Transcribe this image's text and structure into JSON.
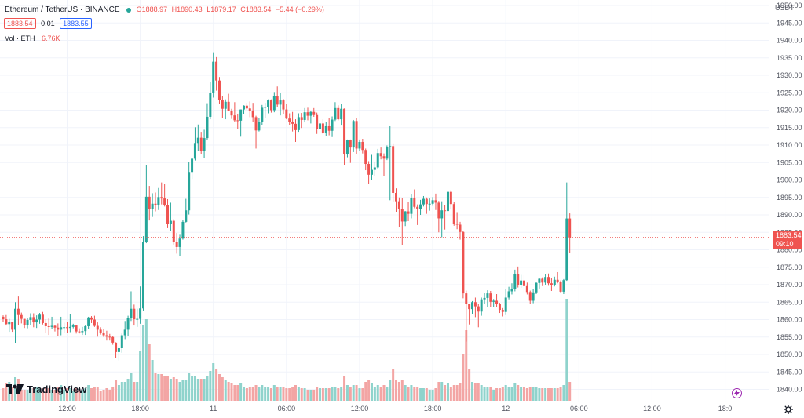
{
  "header": {
    "symbol": "Ethereum / TetherUS · BINANCE",
    "open_label": "O",
    "open": "1888.97",
    "high_label": "H",
    "high": "1890.43",
    "low_label": "L",
    "low": "1879.17",
    "close_label": "C",
    "close": "1883.54",
    "change": "−5.44 (−0.29%)",
    "bid": "1883.54",
    "spread": "0.01",
    "ask": "1883.55",
    "vol_label": "Vol · ETH",
    "vol_value": "6.76K"
  },
  "price_axis": {
    "currency": "USDT",
    "last_price": "1883.54",
    "countdown": "09:10"
  },
  "branding": {
    "name": "TradingView"
  },
  "colors": {
    "up": "#26a69a",
    "down": "#ef5350",
    "vol_up": "#8fd3cc",
    "vol_down": "#f3a5a4",
    "grid": "#f0f3fa"
  },
  "chart_data": {
    "type": "candlestick",
    "symbol": "ETH/USDT",
    "exchange": "BINANCE",
    "ylim": [
      1836,
      1953
    ],
    "yticks": [
      1840,
      1845,
      1850,
      1855,
      1860,
      1865,
      1870,
      1875,
      1880,
      1885,
      1890,
      1895,
      1900,
      1905,
      1910,
      1915,
      1920,
      1925,
      1930,
      1935,
      1940,
      1945,
      1950
    ],
    "time_ticks": [
      {
        "label": "12:00",
        "bar": 21
      },
      {
        "label": "18:00",
        "bar": 45
      },
      {
        "label": "11",
        "bar": 69
      },
      {
        "label": "06:00",
        "bar": 93
      },
      {
        "label": "12:00",
        "bar": 117
      },
      {
        "label": "18:00",
        "bar": 141
      },
      {
        "label": "12",
        "bar": 165
      },
      {
        "label": "06:00",
        "bar": 189
      },
      {
        "label": "12:00",
        "bar": 213
      },
      {
        "label": "18:0",
        "bar": 237
      }
    ],
    "last_price": 1883.54,
    "candles": [
      [
        1860.8,
        1861.2,
        1859.4,
        1860.1,
        0.08
      ],
      [
        1860.1,
        1861.3,
        1858.3,
        1858.7,
        0.11
      ],
      [
        1858.7,
        1860.2,
        1856.5,
        1859.3,
        0.12
      ],
      [
        1859.3,
        1859.4,
        1856.5,
        1857.1,
        0.09
      ],
      [
        1857.1,
        1865.0,
        1853.2,
        1863.1,
        0.15
      ],
      [
        1863.1,
        1866.6,
        1858.4,
        1861.3,
        0.14
      ],
      [
        1861.3,
        1862.0,
        1858.9,
        1860.2,
        0.07
      ],
      [
        1860.2,
        1860.2,
        1857.6,
        1858.4,
        0.07
      ],
      [
        1858.4,
        1860.4,
        1857.5,
        1859.9,
        0.07
      ],
      [
        1859.9,
        1861.8,
        1858.4,
        1860.7,
        0.08
      ],
      [
        1860.7,
        1861.8,
        1857.8,
        1859.2,
        0.08
      ],
      [
        1859.2,
        1861.2,
        1857.6,
        1860.0,
        0.09
      ],
      [
        1860.0,
        1861.9,
        1858.8,
        1861.4,
        0.08
      ],
      [
        1861.4,
        1862.2,
        1858.6,
        1859.0,
        0.08
      ],
      [
        1859.0,
        1860.1,
        1856.3,
        1858.1,
        0.09
      ],
      [
        1858.1,
        1860.3,
        1855.6,
        1857.9,
        0.08
      ],
      [
        1857.9,
        1860.8,
        1857.4,
        1858.2,
        0.07
      ],
      [
        1858.2,
        1858.5,
        1856.6,
        1857.7,
        0.07
      ],
      [
        1857.7,
        1858.9,
        1855.2,
        1857.1,
        0.09
      ],
      [
        1857.1,
        1860.8,
        1855.5,
        1857.8,
        0.1
      ],
      [
        1857.8,
        1859.1,
        1856.2,
        1857.8,
        0.07
      ],
      [
        1857.8,
        1859.3,
        1856.1,
        1857.6,
        0.08
      ],
      [
        1857.6,
        1861.6,
        1856.4,
        1857.9,
        0.08
      ],
      [
        1857.9,
        1858.8,
        1857.5,
        1858.3,
        0.06
      ],
      [
        1858.3,
        1858.4,
        1856.0,
        1856.6,
        0.08
      ],
      [
        1856.6,
        1857.5,
        1856.0,
        1856.4,
        0.07
      ],
      [
        1856.4,
        1857.9,
        1855.6,
        1856.7,
        0.07
      ],
      [
        1856.7,
        1858.4,
        1855.6,
        1858.1,
        0.08
      ],
      [
        1858.1,
        1860.8,
        1857.2,
        1860.6,
        0.1
      ],
      [
        1860.6,
        1861.0,
        1859.0,
        1860.0,
        0.08
      ],
      [
        1860.0,
        1861.1,
        1857.9,
        1858.2,
        0.09
      ],
      [
        1858.2,
        1859.2,
        1855.1,
        1857.1,
        0.09
      ],
      [
        1857.1,
        1857.8,
        1855.7,
        1856.3,
        0.06
      ],
      [
        1856.3,
        1857.2,
        1855.0,
        1855.5,
        0.07
      ],
      [
        1855.5,
        1856.8,
        1854.0,
        1855.1,
        0.08
      ],
      [
        1855.1,
        1855.9,
        1854.0,
        1855.0,
        0.07
      ],
      [
        1855.0,
        1855.2,
        1852.8,
        1853.4,
        0.09
      ],
      [
        1853.4,
        1853.5,
        1849.1,
        1850.7,
        0.13
      ],
      [
        1850.7,
        1852.4,
        1848.3,
        1851.8,
        0.1
      ],
      [
        1851.8,
        1856.0,
        1850.5,
        1855.5,
        0.12
      ],
      [
        1855.5,
        1859.6,
        1854.4,
        1857.1,
        0.12
      ],
      [
        1857.1,
        1861.1,
        1855.4,
        1860.5,
        0.14
      ],
      [
        1860.5,
        1868.1,
        1859.6,
        1863.1,
        0.18
      ],
      [
        1863.1,
        1864.3,
        1858.3,
        1860.1,
        0.12
      ],
      [
        1860.1,
        1863.1,
        1857.9,
        1860.2,
        0.12
      ],
      [
        1860.2,
        1869.5,
        1858.8,
        1863.2,
        0.32
      ],
      [
        1863.2,
        1883.9,
        1862.6,
        1882.2,
        0.48
      ],
      [
        1882.2,
        1904.2,
        1881.9,
        1895.2,
        0.52
      ],
      [
        1895.2,
        1898.3,
        1888.4,
        1891.8,
        0.36
      ],
      [
        1891.8,
        1896.2,
        1889.4,
        1893.2,
        0.26
      ],
      [
        1893.2,
        1896.4,
        1891.0,
        1892.7,
        0.18
      ],
      [
        1892.7,
        1897.7,
        1891.4,
        1895.1,
        0.17
      ],
      [
        1895.1,
        1899.3,
        1893.0,
        1894.7,
        0.17
      ],
      [
        1894.7,
        1898.8,
        1892.4,
        1892.8,
        0.16
      ],
      [
        1892.8,
        1894.5,
        1886.2,
        1887.4,
        0.16
      ],
      [
        1887.4,
        1893.5,
        1885.4,
        1888.3,
        0.14
      ],
      [
        1888.3,
        1888.8,
        1881.5,
        1882.3,
        0.15
      ],
      [
        1882.3,
        1884.8,
        1878.9,
        1880.8,
        0.14
      ],
      [
        1880.8,
        1884.3,
        1878.3,
        1883.2,
        0.12
      ],
      [
        1883.2,
        1888.6,
        1882.9,
        1888.0,
        0.13
      ],
      [
        1888.0,
        1894.6,
        1887.8,
        1891.3,
        0.13
      ],
      [
        1891.3,
        1905.2,
        1890.1,
        1902.3,
        0.18
      ],
      [
        1902.3,
        1906.3,
        1900.3,
        1906.1,
        0.16
      ],
      [
        1906.1,
        1915.1,
        1905.6,
        1910.6,
        0.16
      ],
      [
        1910.6,
        1915.9,
        1908.3,
        1912.1,
        0.14
      ],
      [
        1912.1,
        1913.8,
        1907.4,
        1908.3,
        0.14
      ],
      [
        1908.3,
        1914.4,
        1906.4,
        1912.0,
        0.14
      ],
      [
        1912.0,
        1922.0,
        1911.5,
        1918.1,
        0.16
      ],
      [
        1918.1,
        1928.1,
        1917.4,
        1925.0,
        0.19
      ],
      [
        1925.0,
        1936.6,
        1923.6,
        1933.9,
        0.24
      ],
      [
        1933.9,
        1935.2,
        1925.6,
        1928.5,
        0.2
      ],
      [
        1928.5,
        1929.5,
        1921.7,
        1922.9,
        0.17
      ],
      [
        1922.9,
        1924.0,
        1917.7,
        1920.4,
        0.15
      ],
      [
        1920.4,
        1923.1,
        1917.4,
        1922.4,
        0.13
      ],
      [
        1922.4,
        1924.7,
        1919.7,
        1919.8,
        0.12
      ],
      [
        1919.8,
        1920.4,
        1917.5,
        1918.5,
        0.11
      ],
      [
        1918.5,
        1922.3,
        1916.6,
        1917.1,
        0.1
      ],
      [
        1917.1,
        1919.0,
        1914.7,
        1917.0,
        0.1
      ],
      [
        1917.0,
        1920.2,
        1912.4,
        1920.2,
        0.11
      ],
      [
        1920.2,
        1921.4,
        1918.8,
        1921.3,
        0.09
      ],
      [
        1921.3,
        1922.1,
        1920.1,
        1920.5,
        0.08
      ],
      [
        1920.5,
        1922.5,
        1918.0,
        1919.9,
        0.09
      ],
      [
        1919.9,
        1922.1,
        1916.7,
        1918.0,
        0.09
      ],
      [
        1918.0,
        1918.4,
        1909.0,
        1914.2,
        0.1
      ],
      [
        1914.2,
        1917.8,
        1913.9,
        1916.6,
        0.09
      ],
      [
        1916.6,
        1921.5,
        1915.7,
        1920.7,
        0.1
      ],
      [
        1920.7,
        1922.1,
        1917.7,
        1921.0,
        0.09
      ],
      [
        1921.0,
        1923.1,
        1919.1,
        1922.8,
        0.09
      ],
      [
        1922.8,
        1923.1,
        1919.3,
        1920.0,
        0.08
      ],
      [
        1920.0,
        1925.2,
        1919.4,
        1924.0,
        0.1
      ],
      [
        1924.0,
        1926.8,
        1921.0,
        1921.6,
        0.09
      ],
      [
        1921.6,
        1925.0,
        1918.5,
        1922.8,
        0.09
      ],
      [
        1922.8,
        1923.2,
        1918.8,
        1920.2,
        0.09
      ],
      [
        1920.2,
        1921.8,
        1917.4,
        1917.6,
        0.08
      ],
      [
        1917.6,
        1919.1,
        1915.7,
        1916.7,
        0.08
      ],
      [
        1916.7,
        1919.5,
        1913.9,
        1916.1,
        0.09
      ],
      [
        1916.1,
        1917.4,
        1910.9,
        1914.3,
        0.1
      ],
      [
        1914.3,
        1919.1,
        1913.8,
        1918.0,
        0.09
      ],
      [
        1918.0,
        1919.2,
        1914.9,
        1917.2,
        0.08
      ],
      [
        1917.2,
        1920.6,
        1916.5,
        1919.4,
        0.08
      ],
      [
        1919.4,
        1920.7,
        1917.1,
        1918.4,
        0.07
      ],
      [
        1918.4,
        1919.8,
        1916.2,
        1919.5,
        0.07
      ],
      [
        1919.5,
        1920.6,
        1918.1,
        1918.6,
        0.07
      ],
      [
        1918.6,
        1919.3,
        1913.2,
        1914.6,
        0.09
      ],
      [
        1914.6,
        1916.6,
        1913.3,
        1916.2,
        0.08
      ],
      [
        1916.2,
        1917.4,
        1913.1,
        1913.6,
        0.08
      ],
      [
        1913.6,
        1916.7,
        1912.7,
        1915.4,
        0.08
      ],
      [
        1915.4,
        1917.7,
        1912.8,
        1914.1,
        0.08
      ],
      [
        1914.1,
        1918.2,
        1912.3,
        1917.3,
        0.09
      ],
      [
        1917.3,
        1922.3,
        1916.9,
        1920.6,
        0.09
      ],
      [
        1920.6,
        1921.4,
        1917.1,
        1917.4,
        0.08
      ],
      [
        1917.4,
        1921.8,
        1915.6,
        1920.4,
        0.09
      ],
      [
        1920.4,
        1920.5,
        1904.2,
        1907.3,
        0.16
      ],
      [
        1907.3,
        1911.6,
        1906.5,
        1911.4,
        0.1
      ],
      [
        1911.4,
        1911.6,
        1904.9,
        1909.3,
        0.09
      ],
      [
        1909.3,
        1917.2,
        1908.0,
        1916.9,
        0.1
      ],
      [
        1916.9,
        1917.8,
        1907.3,
        1909.0,
        0.1
      ],
      [
        1909.0,
        1911.6,
        1908.3,
        1910.9,
        0.08
      ],
      [
        1910.9,
        1911.8,
        1907.6,
        1908.6,
        0.08
      ],
      [
        1908.6,
        1909.0,
        1902.8,
        1904.6,
        0.12
      ],
      [
        1904.6,
        1905.4,
        1898.8,
        1901.5,
        0.13
      ],
      [
        1901.5,
        1907.2,
        1899.9,
        1902.9,
        0.11
      ],
      [
        1902.9,
        1905.3,
        1901.2,
        1903.6,
        0.09
      ],
      [
        1903.6,
        1908.9,
        1903.2,
        1907.7,
        0.1
      ],
      [
        1907.7,
        1909.3,
        1905.9,
        1906.8,
        0.09
      ],
      [
        1906.8,
        1907.6,
        1901.0,
        1906.1,
        0.1
      ],
      [
        1906.1,
        1909.9,
        1905.7,
        1909.4,
        0.09
      ],
      [
        1909.4,
        1915.4,
        1894.2,
        1909.7,
        0.13
      ],
      [
        1909.7,
        1910.5,
        1893.8,
        1896.3,
        0.2
      ],
      [
        1896.3,
        1897.6,
        1890.9,
        1893.9,
        0.13
      ],
      [
        1893.9,
        1895.0,
        1886.5,
        1891.6,
        0.12
      ],
      [
        1891.6,
        1894.9,
        1881.4,
        1888.1,
        0.13
      ],
      [
        1888.1,
        1891.1,
        1886.8,
        1891.0,
        0.1
      ],
      [
        1891.0,
        1893.6,
        1888.2,
        1890.3,
        0.09
      ],
      [
        1890.3,
        1895.9,
        1889.0,
        1894.8,
        0.1
      ],
      [
        1894.8,
        1897.3,
        1891.9,
        1892.3,
        0.09
      ],
      [
        1892.3,
        1893.0,
        1887.1,
        1891.6,
        0.09
      ],
      [
        1891.6,
        1894.3,
        1890.0,
        1893.0,
        0.08
      ],
      [
        1893.0,
        1895.4,
        1892.4,
        1894.6,
        0.08
      ],
      [
        1894.6,
        1895.0,
        1890.3,
        1893.1,
        0.08
      ],
      [
        1893.1,
        1894.7,
        1891.2,
        1893.2,
        0.07
      ],
      [
        1893.2,
        1895.1,
        1892.6,
        1894.2,
        0.07
      ],
      [
        1894.2,
        1896.1,
        1891.4,
        1893.5,
        0.08
      ],
      [
        1893.5,
        1894.0,
        1885.0,
        1889.0,
        0.12
      ],
      [
        1889.0,
        1893.9,
        1883.6,
        1891.3,
        0.12
      ],
      [
        1891.3,
        1892.8,
        1885.8,
        1891.1,
        0.1
      ],
      [
        1891.1,
        1897.0,
        1890.2,
        1896.6,
        0.11
      ],
      [
        1896.6,
        1897.1,
        1891.6,
        1893.1,
        0.09
      ],
      [
        1893.1,
        1893.8,
        1886.9,
        1887.5,
        0.1
      ],
      [
        1887.5,
        1890.8,
        1885.9,
        1887.2,
        0.1
      ],
      [
        1887.2,
        1888.0,
        1882.9,
        1885.1,
        0.11
      ],
      [
        1885.1,
        1885.3,
        1866.1,
        1867.5,
        0.3
      ],
      [
        1867.5,
        1868.3,
        1853.7,
        1864.5,
        0.45
      ],
      [
        1864.5,
        1864.6,
        1858.6,
        1863.0,
        0.2
      ],
      [
        1863.0,
        1865.3,
        1861.5,
        1865.0,
        0.12
      ],
      [
        1865.0,
        1866.3,
        1860.7,
        1863.8,
        0.11
      ],
      [
        1863.8,
        1864.6,
        1857.8,
        1862.3,
        0.11
      ],
      [
        1862.3,
        1866.3,
        1861.1,
        1865.8,
        0.1
      ],
      [
        1865.8,
        1867.7,
        1864.6,
        1866.2,
        0.09
      ],
      [
        1866.2,
        1868.4,
        1863.6,
        1867.5,
        0.09
      ],
      [
        1867.5,
        1868.2,
        1863.7,
        1865.1,
        0.09
      ],
      [
        1865.1,
        1865.9,
        1863.5,
        1865.4,
        0.07
      ],
      [
        1865.4,
        1867.3,
        1863.6,
        1864.5,
        0.08
      ],
      [
        1864.5,
        1864.8,
        1861.9,
        1862.8,
        0.08
      ],
      [
        1862.8,
        1863.3,
        1860.9,
        1862.2,
        0.09
      ],
      [
        1862.2,
        1868.8,
        1861.3,
        1866.3,
        0.1
      ],
      [
        1866.3,
        1869.4,
        1865.8,
        1868.1,
        0.09
      ],
      [
        1868.1,
        1870.4,
        1867.2,
        1868.8,
        0.09
      ],
      [
        1868.8,
        1874.3,
        1868.1,
        1873.0,
        0.11
      ],
      [
        1873.0,
        1875.2,
        1869.2,
        1869.9,
        0.1
      ],
      [
        1869.9,
        1872.8,
        1869.1,
        1871.2,
        0.09
      ],
      [
        1871.2,
        1872.7,
        1867.5,
        1869.6,
        0.09
      ],
      [
        1869.6,
        1870.6,
        1867.2,
        1867.9,
        0.08
      ],
      [
        1867.9,
        1868.3,
        1864.4,
        1865.4,
        0.09
      ],
      [
        1865.4,
        1868.7,
        1864.7,
        1867.8,
        0.09
      ],
      [
        1867.8,
        1870.9,
        1867.3,
        1870.5,
        0.09
      ],
      [
        1870.5,
        1872.0,
        1868.9,
        1871.7,
        0.08
      ],
      [
        1871.7,
        1872.1,
        1869.6,
        1870.6,
        0.08
      ],
      [
        1870.6,
        1873.0,
        1870.0,
        1872.2,
        0.08
      ],
      [
        1872.2,
        1873.2,
        1869.7,
        1870.4,
        0.08
      ],
      [
        1870.4,
        1872.0,
        1868.2,
        1869.9,
        0.08
      ],
      [
        1869.9,
        1872.3,
        1869.5,
        1871.4,
        0.08
      ],
      [
        1871.4,
        1873.6,
        1870.4,
        1870.9,
        0.08
      ],
      [
        1870.9,
        1871.2,
        1867.8,
        1868.0,
        0.09
      ],
      [
        1868.0,
        1871.6,
        1867.3,
        1871.3,
        0.1
      ],
      [
        1871.3,
        1899.3,
        1871.1,
        1888.97,
        0.65
      ],
      [
        1888.97,
        1890.43,
        1879.17,
        1883.54,
        0.12
      ]
    ]
  }
}
